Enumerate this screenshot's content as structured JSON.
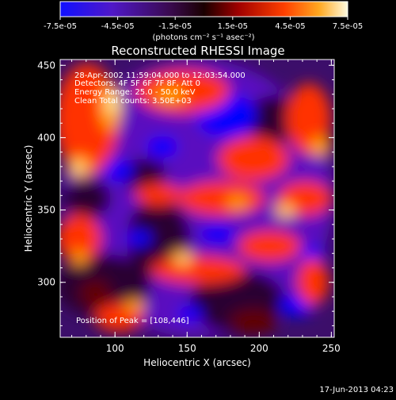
{
  "colorbar": {
    "tick_labels": [
      "-7.5e-05",
      "-4.5e-05",
      "-1.5e-05",
      "1.5e-05",
      "4.5e-05",
      "7.5e-05"
    ],
    "unit_label": "(photons cm⁻² s⁻¹ asec⁻²)",
    "range": [
      -7.5e-05,
      7.5e-05
    ]
  },
  "image": {
    "title": "Reconstructed RHESSI Image",
    "info_lines": [
      "28-Apr-2002 11:59:04.000 to 12:03:54.000",
      "Detectors: 4F 5F 6F 7F 8F, Att 0",
      "Energy Range: 25.0 - 50.0 keV",
      "Clean    Total counts: 3.50E+03"
    ],
    "peak_label": "Position of Peak = [108,446]",
    "xlabel": "Heliocentric X (arcsec)",
    "ylabel": "Heliocentric Y (arcsec)",
    "x_ticks": [
      "100",
      "150",
      "200",
      "250"
    ],
    "y_ticks": [
      "300",
      "350",
      "400",
      "450"
    ],
    "x_range": [
      62,
      252
    ],
    "y_range": [
      262,
      454
    ]
  },
  "footer": {
    "timestamp": "17-Jun-2013 04:23"
  },
  "colors": {
    "background": "#000000",
    "axis": "#ffffff",
    "colormap": [
      "#0000ff",
      "#5a0fbf",
      "#2a0033",
      "#600000",
      "#ff3300",
      "#ffa000",
      "#fff0a0"
    ]
  }
}
